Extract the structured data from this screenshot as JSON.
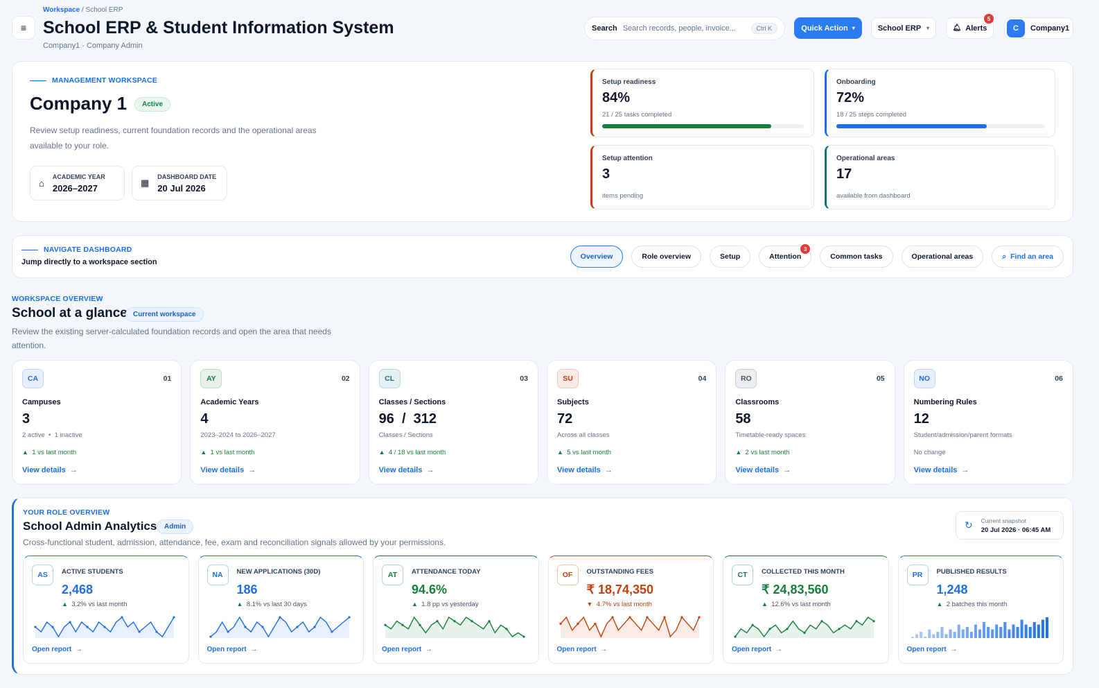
{
  "header": {
    "breadcrumb": [
      "Workspace",
      "School ERP"
    ],
    "title": "School ERP & Student Information System",
    "subtitle": "Company1 · Company Admin",
    "search_label": "Search",
    "search_placeholder": "Search records, people, invoice...",
    "shortcut": "Ctrl K",
    "quick_action": "Quick Action",
    "module": "School ERP",
    "alerts": "Alerts",
    "alerts_count": "5",
    "avatar": "C",
    "company": "Company1"
  },
  "hero": {
    "eyebrow": "MANAGEMENT WORKSPACE",
    "name": "Company 1",
    "status": "Active",
    "description": "Review setup readiness, current foundation records and the operational areas available to your role.",
    "meta": [
      {
        "label": "ACADEMIC YEAR",
        "value": "2026–2027"
      },
      {
        "label": "DASHBOARD DATE",
        "value": "20 Jul 2026"
      }
    ],
    "stats": [
      {
        "title": "Setup readiness",
        "value": "84%",
        "progress": 84,
        "note": "21 / 25 tasks completed",
        "color": "#c2410c",
        "bar": "#15803d"
      },
      {
        "title": "Onboarding",
        "value": "72%",
        "progress": 72,
        "note": "18 / 25 steps completed",
        "color": "#1d6fe8",
        "bar": "#1d6fe8"
      },
      {
        "title": "Setup attention",
        "value": "3",
        "note": "items pending",
        "color": "#c2410c"
      },
      {
        "title": "Operational areas",
        "value": "17",
        "note": "available from dashboard",
        "color": "#0f766e"
      }
    ]
  },
  "nav": {
    "eyebrow": "NAVIGATE DASHBOARD",
    "subtitle": "Jump directly to a workspace section",
    "tabs": [
      "Overview",
      "Role overview",
      "Setup",
      "Attention",
      "Common tasks",
      "Operational areas"
    ],
    "attention_badge": "3",
    "find": "Find an area"
  },
  "overview": {
    "eyebrow": "WORKSPACE OVERVIEW",
    "title": "School at a glance",
    "tag": "Current workspace",
    "description": "Review the existing server-calculated foundation records and open the area that needs attention.",
    "cards": [
      {
        "code": "CA",
        "index": "01",
        "title": "Campuses",
        "value": "3",
        "note": "2 active  •  1 inactive",
        "change": "1 vs last month",
        "trend": "up",
        "link": "View details",
        "color": "#1d6fe8"
      },
      {
        "code": "AY",
        "index": "02",
        "title": "Academic Years",
        "value": "4",
        "note": "2023–2024 to 2026–2027",
        "change": "1 vs last month",
        "trend": "up",
        "link": "View details",
        "color": "#15803d"
      },
      {
        "code": "CL",
        "index": "03",
        "title": "Classes / Sections",
        "value": "96  /  312",
        "note": "Classes / Sections",
        "change": "4 / 18 vs last month",
        "trend": "up",
        "link": "View details",
        "color": "#0e7490"
      },
      {
        "code": "SU",
        "index": "04",
        "title": "Subjects",
        "value": "72",
        "note": "Across all classes",
        "change": "5 vs last month",
        "trend": "up",
        "link": "View details",
        "color": "#c2410c"
      },
      {
        "code": "RO",
        "index": "05",
        "title": "Classrooms",
        "value": "58",
        "note": "Timetable-ready spaces",
        "change": "2 vs last month",
        "trend": "up",
        "link": "View details",
        "color": "#475569"
      },
      {
        "code": "NO",
        "index": "06",
        "title": "Numbering Rules",
        "value": "12",
        "note": "Student/admission/parent formats",
        "change": "No change",
        "trend": "none",
        "link": "View details",
        "color": "#1d6fe8"
      }
    ]
  },
  "role": {
    "eyebrow": "YOUR ROLE OVERVIEW",
    "title": "School Admin Analytics",
    "tag": "Admin",
    "description": "Cross-functional student, admission, attendance, fee, exam and reconciliation signals allowed by your permissions.",
    "snapshot_label": "Current snapshot",
    "snapshot_value": "20 Jul 2026 · 06:45 AM",
    "kpis": [
      {
        "code": "AS",
        "title": "ACTIVE STUDENTS",
        "value": "2,468",
        "change": "3.2% vs last month",
        "trend": "up",
        "link": "Open report",
        "color": "#1d6fe8",
        "chart": "line",
        "spark": [
          5,
          4,
          6,
          5,
          3,
          5,
          6,
          4,
          6,
          5,
          4,
          6,
          5,
          4,
          6,
          7,
          5,
          6,
          4,
          5,
          6,
          4,
          3,
          5,
          7
        ]
      },
      {
        "code": "NA",
        "title": "NEW APPLICATIONS (30D)",
        "value": "186",
        "change": "8.1% vs last 30 days",
        "trend": "up",
        "link": "Open report",
        "color": "#1d6fe8",
        "chart": "line",
        "spark": [
          3,
          4,
          6,
          4,
          5,
          7,
          5,
          4,
          6,
          5,
          3,
          5,
          7,
          6,
          4,
          5,
          6,
          4,
          5,
          7,
          6,
          4,
          5,
          6,
          7
        ]
      },
      {
        "code": "AT",
        "title": "ATTENDANCE TODAY",
        "value": "94.6%",
        "change": "1.8 pp vs yesterday",
        "trend": "up",
        "link": "Open report",
        "color": "#15803d",
        "chart": "line",
        "spark": [
          5,
          4,
          6,
          5,
          4,
          7,
          5,
          3,
          5,
          6,
          4,
          7,
          6,
          5,
          7,
          6,
          5,
          4,
          6,
          3,
          5,
          4,
          2,
          3,
          2
        ]
      },
      {
        "code": "OF",
        "title": "OUTSTANDING FEES",
        "value": "₹ 18,74,350",
        "change": "4.7% vs last month",
        "trend": "down",
        "link": "Open report",
        "color": "#c2410c",
        "chart": "line",
        "spark": [
          5,
          6,
          4,
          5,
          6,
          4,
          5,
          3,
          5,
          6,
          4,
          5,
          6,
          5,
          4,
          6,
          5,
          4,
          6,
          3,
          4,
          6,
          5,
          4,
          6
        ]
      },
      {
        "code": "CT",
        "title": "COLLECTED THIS MONTH",
        "value": "₹ 24,83,560",
        "change": "12.6% vs last month",
        "trend": "up",
        "link": "Open report",
        "color": "#15803d",
        "chart": "line",
        "spark": [
          3,
          5,
          4,
          6,
          5,
          3,
          5,
          6,
          4,
          5,
          7,
          5,
          4,
          6,
          5,
          7,
          6,
          4,
          5,
          6,
          5,
          7,
          6,
          8,
          7
        ]
      },
      {
        "code": "PR",
        "title": "PUBLISHED RESULTS",
        "value": "1,248",
        "change": "2 batches this month",
        "trend": "up",
        "link": "Open report",
        "color": "#1d6fe8",
        "chart": "bar",
        "spark": [
          2,
          3,
          4,
          2,
          5,
          3,
          4,
          6,
          3,
          5,
          4,
          7,
          5,
          6,
          4,
          7,
          5,
          8,
          6,
          5,
          7,
          6,
          8,
          5,
          7,
          6,
          9,
          7,
          6,
          8,
          7,
          9,
          10
        ]
      }
    ]
  }
}
